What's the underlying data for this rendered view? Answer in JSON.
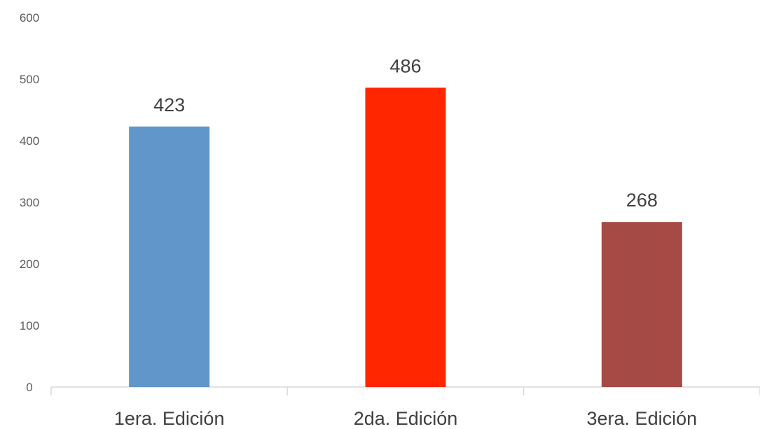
{
  "chart_data": {
    "type": "bar",
    "categories": [
      "1era. Edición",
      "2da. Edición",
      "3era. Edición"
    ],
    "values": [
      423,
      486,
      268
    ],
    "data_labels": [
      "423",
      "486",
      "268"
    ],
    "colors": [
      "#6096c9",
      "#ff2600",
      "#a64a45"
    ],
    "title": "",
    "xlabel": "",
    "ylabel": "",
    "ylim": [
      0,
      600
    ],
    "yticks": [
      0,
      100,
      200,
      300,
      400,
      500,
      600
    ],
    "ytick_labels": [
      "0",
      "100",
      "200",
      "300",
      "400",
      "500",
      "600"
    ],
    "grid": false,
    "legend": "none"
  }
}
